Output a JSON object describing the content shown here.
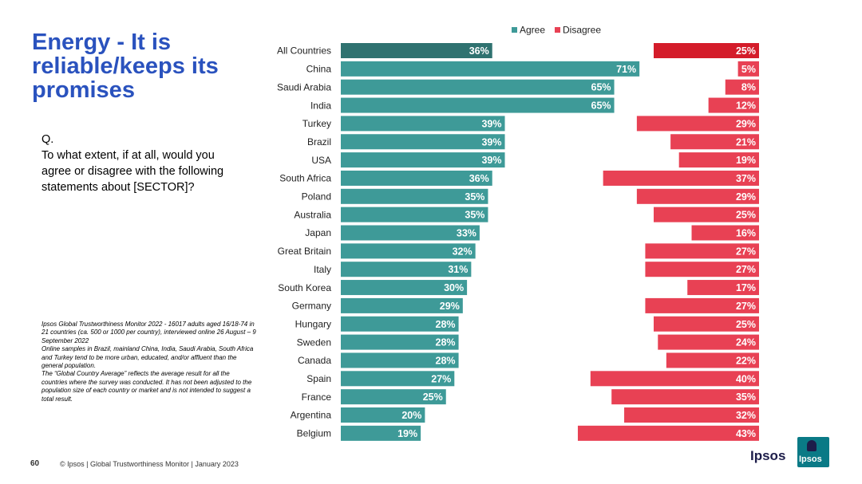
{
  "slide": {
    "title": "Energy - It is reliable/keeps its promises",
    "question": [
      "Q.",
      "To what extent, if at all, would you agree or disagree with the following statements about [SECTOR]?"
    ],
    "notes": [
      "Ipsos Global Trustworthiness Monitor 2022 - 16017 adults aged 16/18-74 in 21 countries (ca. 500 or 1000 per country), interviewed online 26 August – 9 September 2022",
      "Online samples in Brazil, mainland China, India, Saudi Arabia, South Africa and Turkey tend to be more urban, educated, and/or affluent than the general population.",
      "The “Global Country Average” reflects the average result for all the countries where the survey was conducted. It has not been adjusted to the population size of each country or market and is not intended to suggest a total result."
    ],
    "page_number": "60",
    "footer": "© Ipsos | Global Trustworthiness Monitor | January 2023",
    "logo_text": "Ipsos",
    "logo_mark_text": "Ipsos"
  },
  "colors": {
    "title": "#2a52be",
    "agree": "#3e9a98",
    "agree_highlight": "#2f7270",
    "disagree": "#e84154",
    "disagree_highlight": "#d41c2a"
  },
  "chart_data": {
    "type": "bar",
    "orientation": "horizontal-diverging",
    "categories": [
      "All Countries",
      "China",
      "Saudi Arabia",
      "India",
      "Turkey",
      "Brazil",
      "USA",
      "South Africa",
      "Poland",
      "Australia",
      "Japan",
      "Great Britain",
      "Italy",
      "South Korea",
      "Germany",
      "Hungary",
      "Sweden",
      "Canada",
      "Spain",
      "France",
      "Argentina",
      "Belgium"
    ],
    "series": [
      {
        "name": "Agree",
        "values": [
          36,
          71,
          65,
          65,
          39,
          39,
          39,
          36,
          35,
          35,
          33,
          32,
          31,
          30,
          29,
          28,
          28,
          28,
          27,
          25,
          20,
          19
        ]
      },
      {
        "name": "Disagree",
        "values": [
          25,
          5,
          8,
          12,
          29,
          21,
          19,
          37,
          29,
          25,
          16,
          27,
          27,
          17,
          27,
          25,
          24,
          22,
          40,
          35,
          32,
          43
        ]
      }
    ],
    "value_suffix": "%",
    "legend": "top-center",
    "highlight_category": "All Countries"
  }
}
